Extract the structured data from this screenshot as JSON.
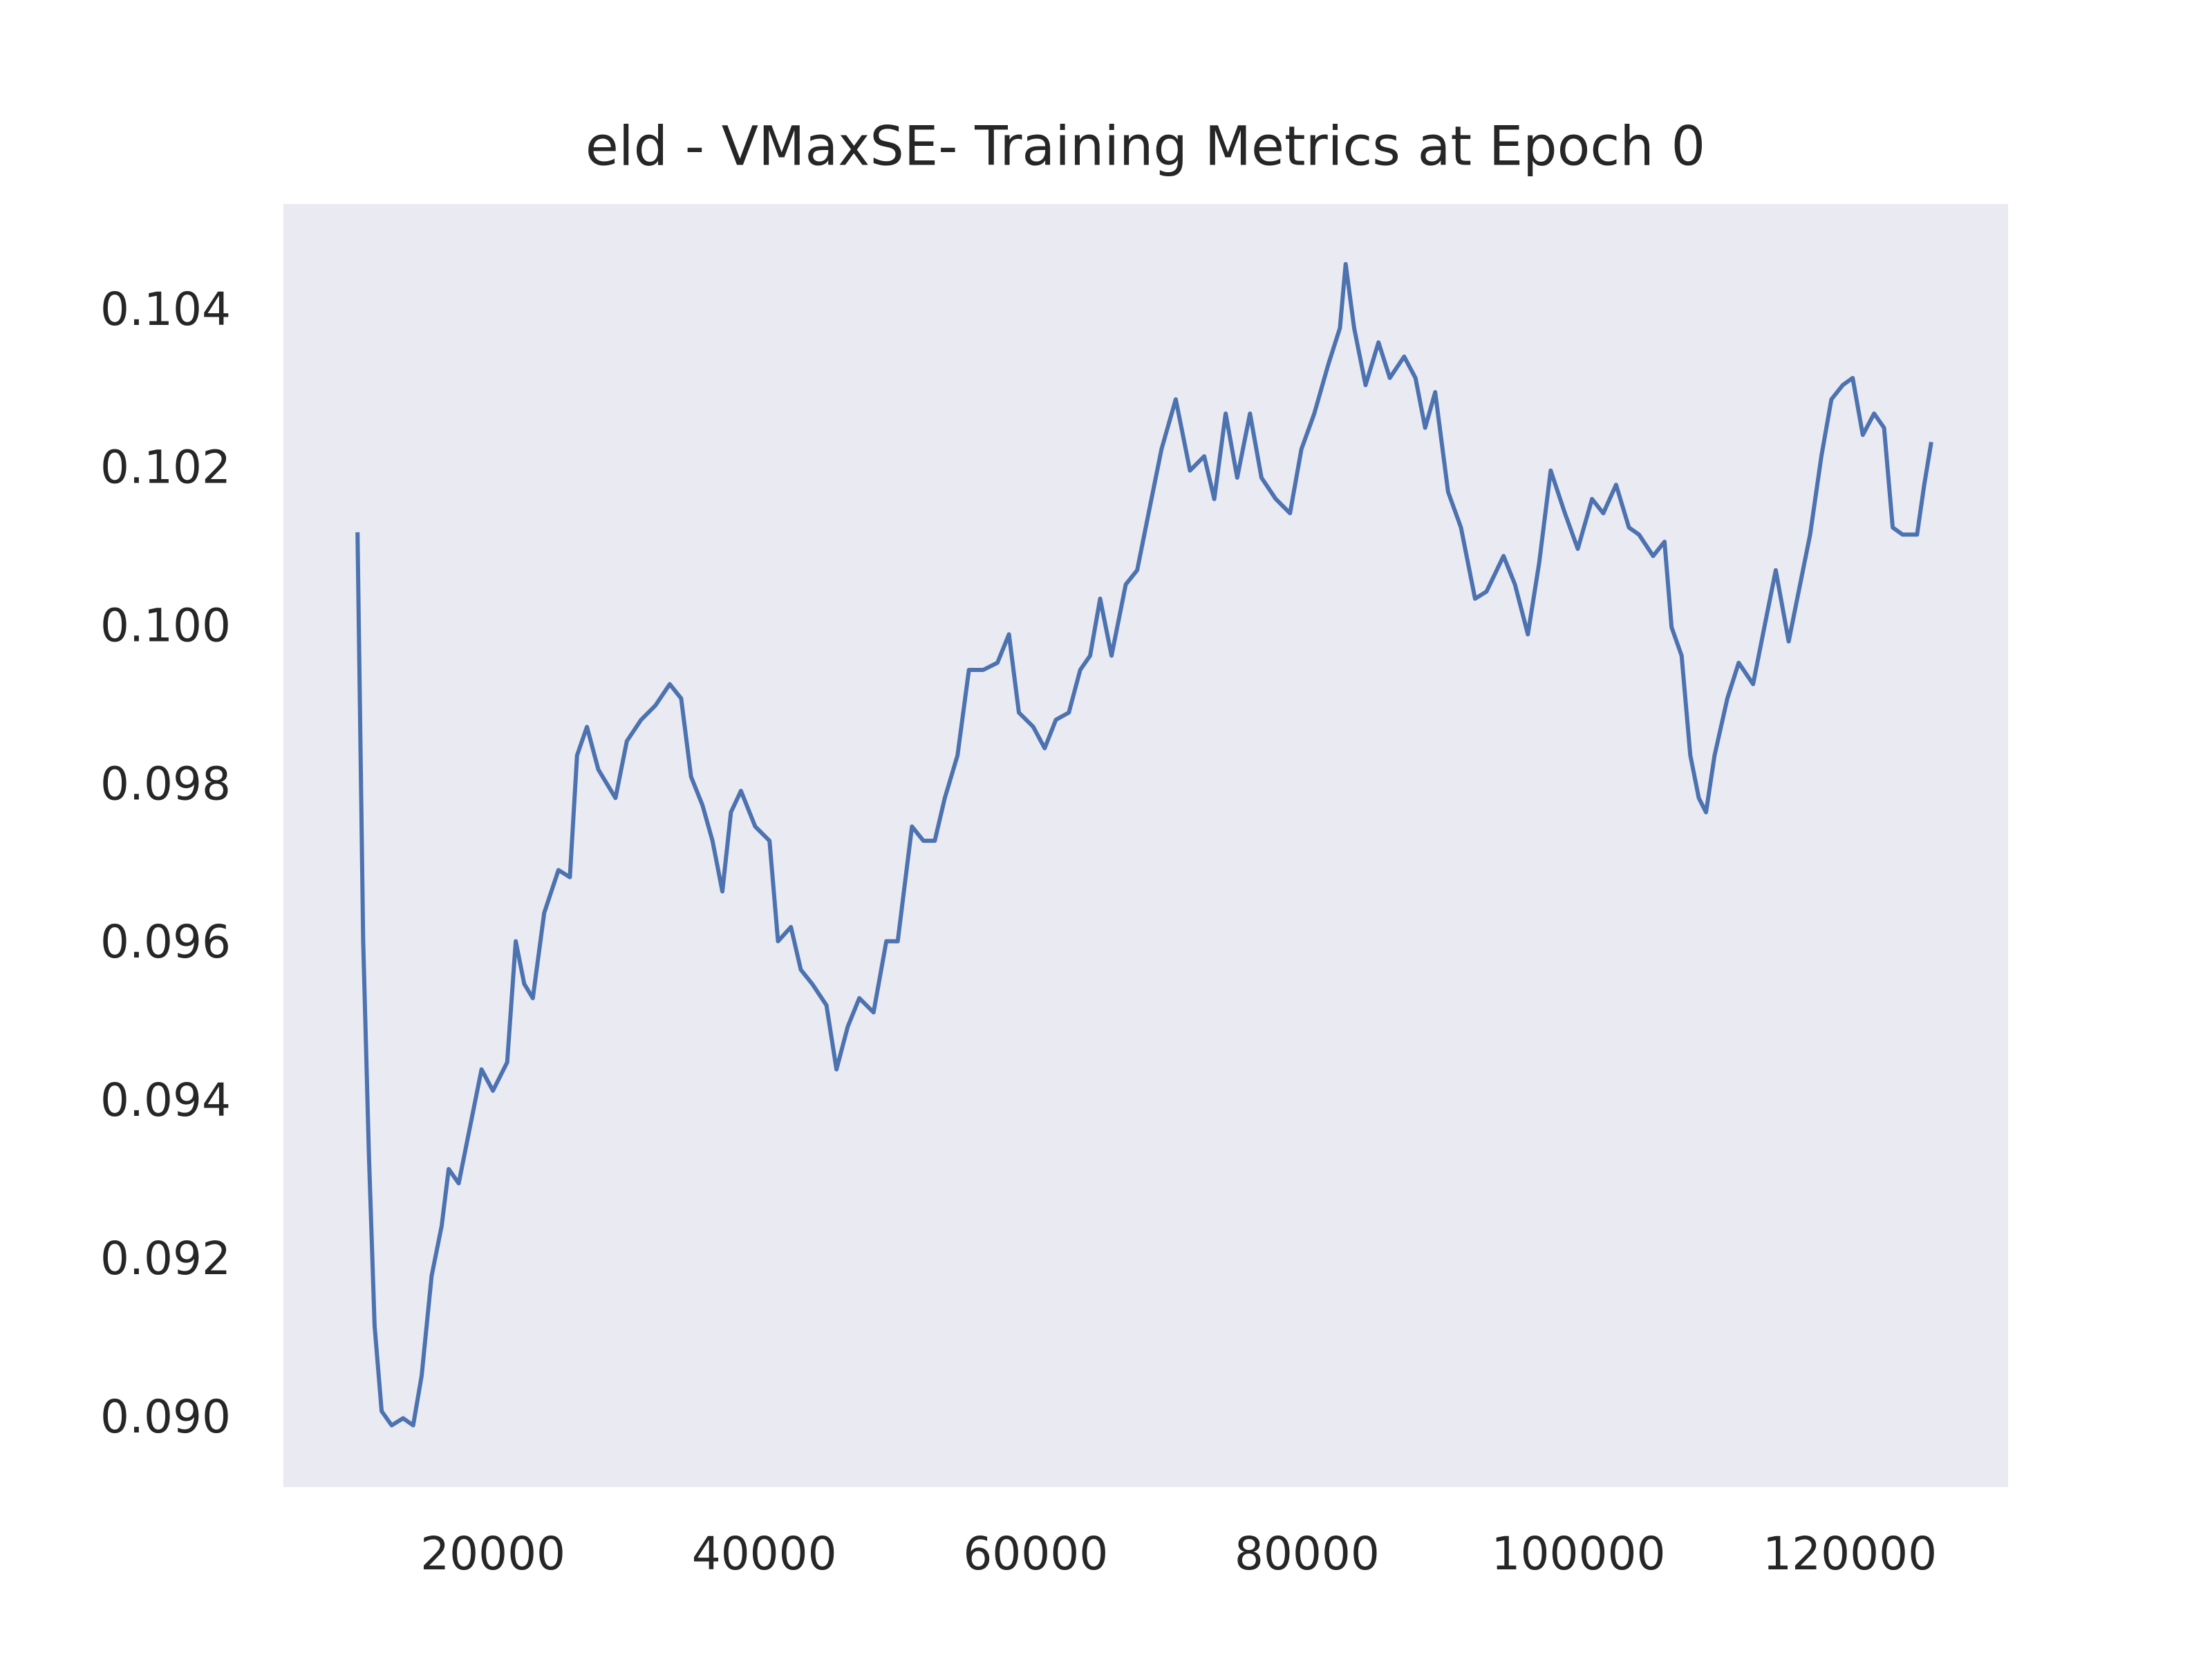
{
  "chart_data": {
    "type": "line",
    "title": "eld - VMaxSE- Training Metrics at Epoch 0",
    "x": [
      10020,
      10440,
      10860,
      11280,
      11800,
      12540,
      13380,
      14120,
      14750,
      15480,
      16220,
      16740,
      17480,
      18320,
      19160,
      20000,
      21050,
      21680,
      22310,
      22940,
      23780,
      24830,
      25670,
      26200,
      26930,
      27770,
      29030,
      29870,
      30920,
      31970,
      33030,
      33870,
      34600,
      35440,
      36180,
      36910,
      37540,
      38280,
      39330,
      40380,
      41010,
      41960,
      42690,
      43530,
      44580,
      45320,
      46150,
      47000,
      48050,
      48990,
      49830,
      50880,
      51720,
      52560,
      53300,
      54240,
      55080,
      56130,
      57180,
      58030,
      58760,
      59820,
      60660,
      61490,
      62440,
      63280,
      64010,
      64750,
      65590,
      66640,
      67480,
      68320,
      69270,
      70320,
      71370,
      72420,
      73160,
      74000,
      74850,
      75790,
      76640,
      77690,
      78740,
      79580,
      80530,
      81580,
      82420,
      82840,
      83470,
      84310,
      85260,
      86100,
      87150,
      87990,
      88700,
      89440,
      90390,
      91340,
      92380,
      93220,
      94480,
      95320,
      96270,
      97100,
      97950,
      99000,
      99950,
      101000,
      101830,
      102770,
      103720,
      104460,
      105500,
      106340,
      106860,
      107600,
      108240,
      108870,
      109400,
      110030,
      110970,
      111810,
      112870,
      113700,
      114540,
      115490,
      116330,
      117070,
      117900,
      118640,
      119480,
      120210,
      120950,
      121790,
      122520,
      123160,
      123890,
      124950,
      125480,
      126000
    ],
    "series": [
      {
        "color": "#4c72b0",
        "values": [
          0.10122,
          0.09605,
          0.09335,
          0.09119,
          0.09011,
          0.08993,
          0.09002,
          0.08993,
          0.09056,
          0.09182,
          0.09245,
          0.09317,
          0.09299,
          0.09371,
          0.09443,
          0.09416,
          0.09452,
          0.09605,
          0.09551,
          0.09533,
          0.09641,
          0.09695,
          0.09686,
          0.0984,
          0.09876,
          0.09822,
          0.09786,
          0.09858,
          0.09885,
          0.09903,
          0.0993,
          0.09912,
          0.09813,
          0.09777,
          0.09732,
          0.09668,
          0.09768,
          0.09795,
          0.0975,
          0.09732,
          0.09605,
          0.09623,
          0.09569,
          0.09551,
          0.09524,
          0.09443,
          0.09497,
          0.09533,
          0.09515,
          0.09605,
          0.09605,
          0.0975,
          0.09732,
          0.09732,
          0.09786,
          0.0984,
          0.09948,
          0.09948,
          0.09957,
          0.09993,
          0.09894,
          0.09876,
          0.09849,
          0.09885,
          0.09894,
          0.09948,
          0.09966,
          0.10038,
          0.09966,
          0.10056,
          0.10074,
          0.10146,
          0.10227,
          0.1029,
          0.102,
          0.10218,
          0.10164,
          0.10272,
          0.10191,
          0.10272,
          0.10191,
          0.10164,
          0.10146,
          0.10227,
          0.10272,
          0.10335,
          0.1038,
          0.10461,
          0.1038,
          0.10308,
          0.10362,
          0.10317,
          0.10344,
          0.10317,
          0.10254,
          0.10299,
          0.10173,
          0.10128,
          0.10038,
          0.10047,
          0.10092,
          0.10056,
          0.09993,
          0.10083,
          0.102,
          0.10146,
          0.10101,
          0.10164,
          0.10146,
          0.10182,
          0.10128,
          0.10119,
          0.10092,
          0.1011,
          0.10002,
          0.09966,
          0.0984,
          0.09786,
          0.09768,
          0.0984,
          0.09912,
          0.09957,
          0.0993,
          0.10002,
          0.10074,
          0.09984,
          0.10056,
          0.10119,
          0.10218,
          0.1029,
          0.10308,
          0.10317,
          0.10245,
          0.10272,
          0.10254,
          0.10128,
          0.10119,
          0.10119,
          0.10182,
          0.10236
        ]
      }
    ],
    "xlim": [
      4560,
      131660
    ],
    "xticks": [
      20000,
      40000,
      60000,
      80000,
      100000,
      120000
    ],
    "ylim": [
      0.08915,
      0.10537
    ],
    "yticks": [
      {
        "value": 0.09,
        "label": "0.090"
      },
      0.092,
      0.094,
      0.096,
      0.098,
      {
        "value": 0.1,
        "label": "0.100"
      },
      0.102,
      0.104
    ],
    "grid": false,
    "background": "#eaeaf2"
  }
}
